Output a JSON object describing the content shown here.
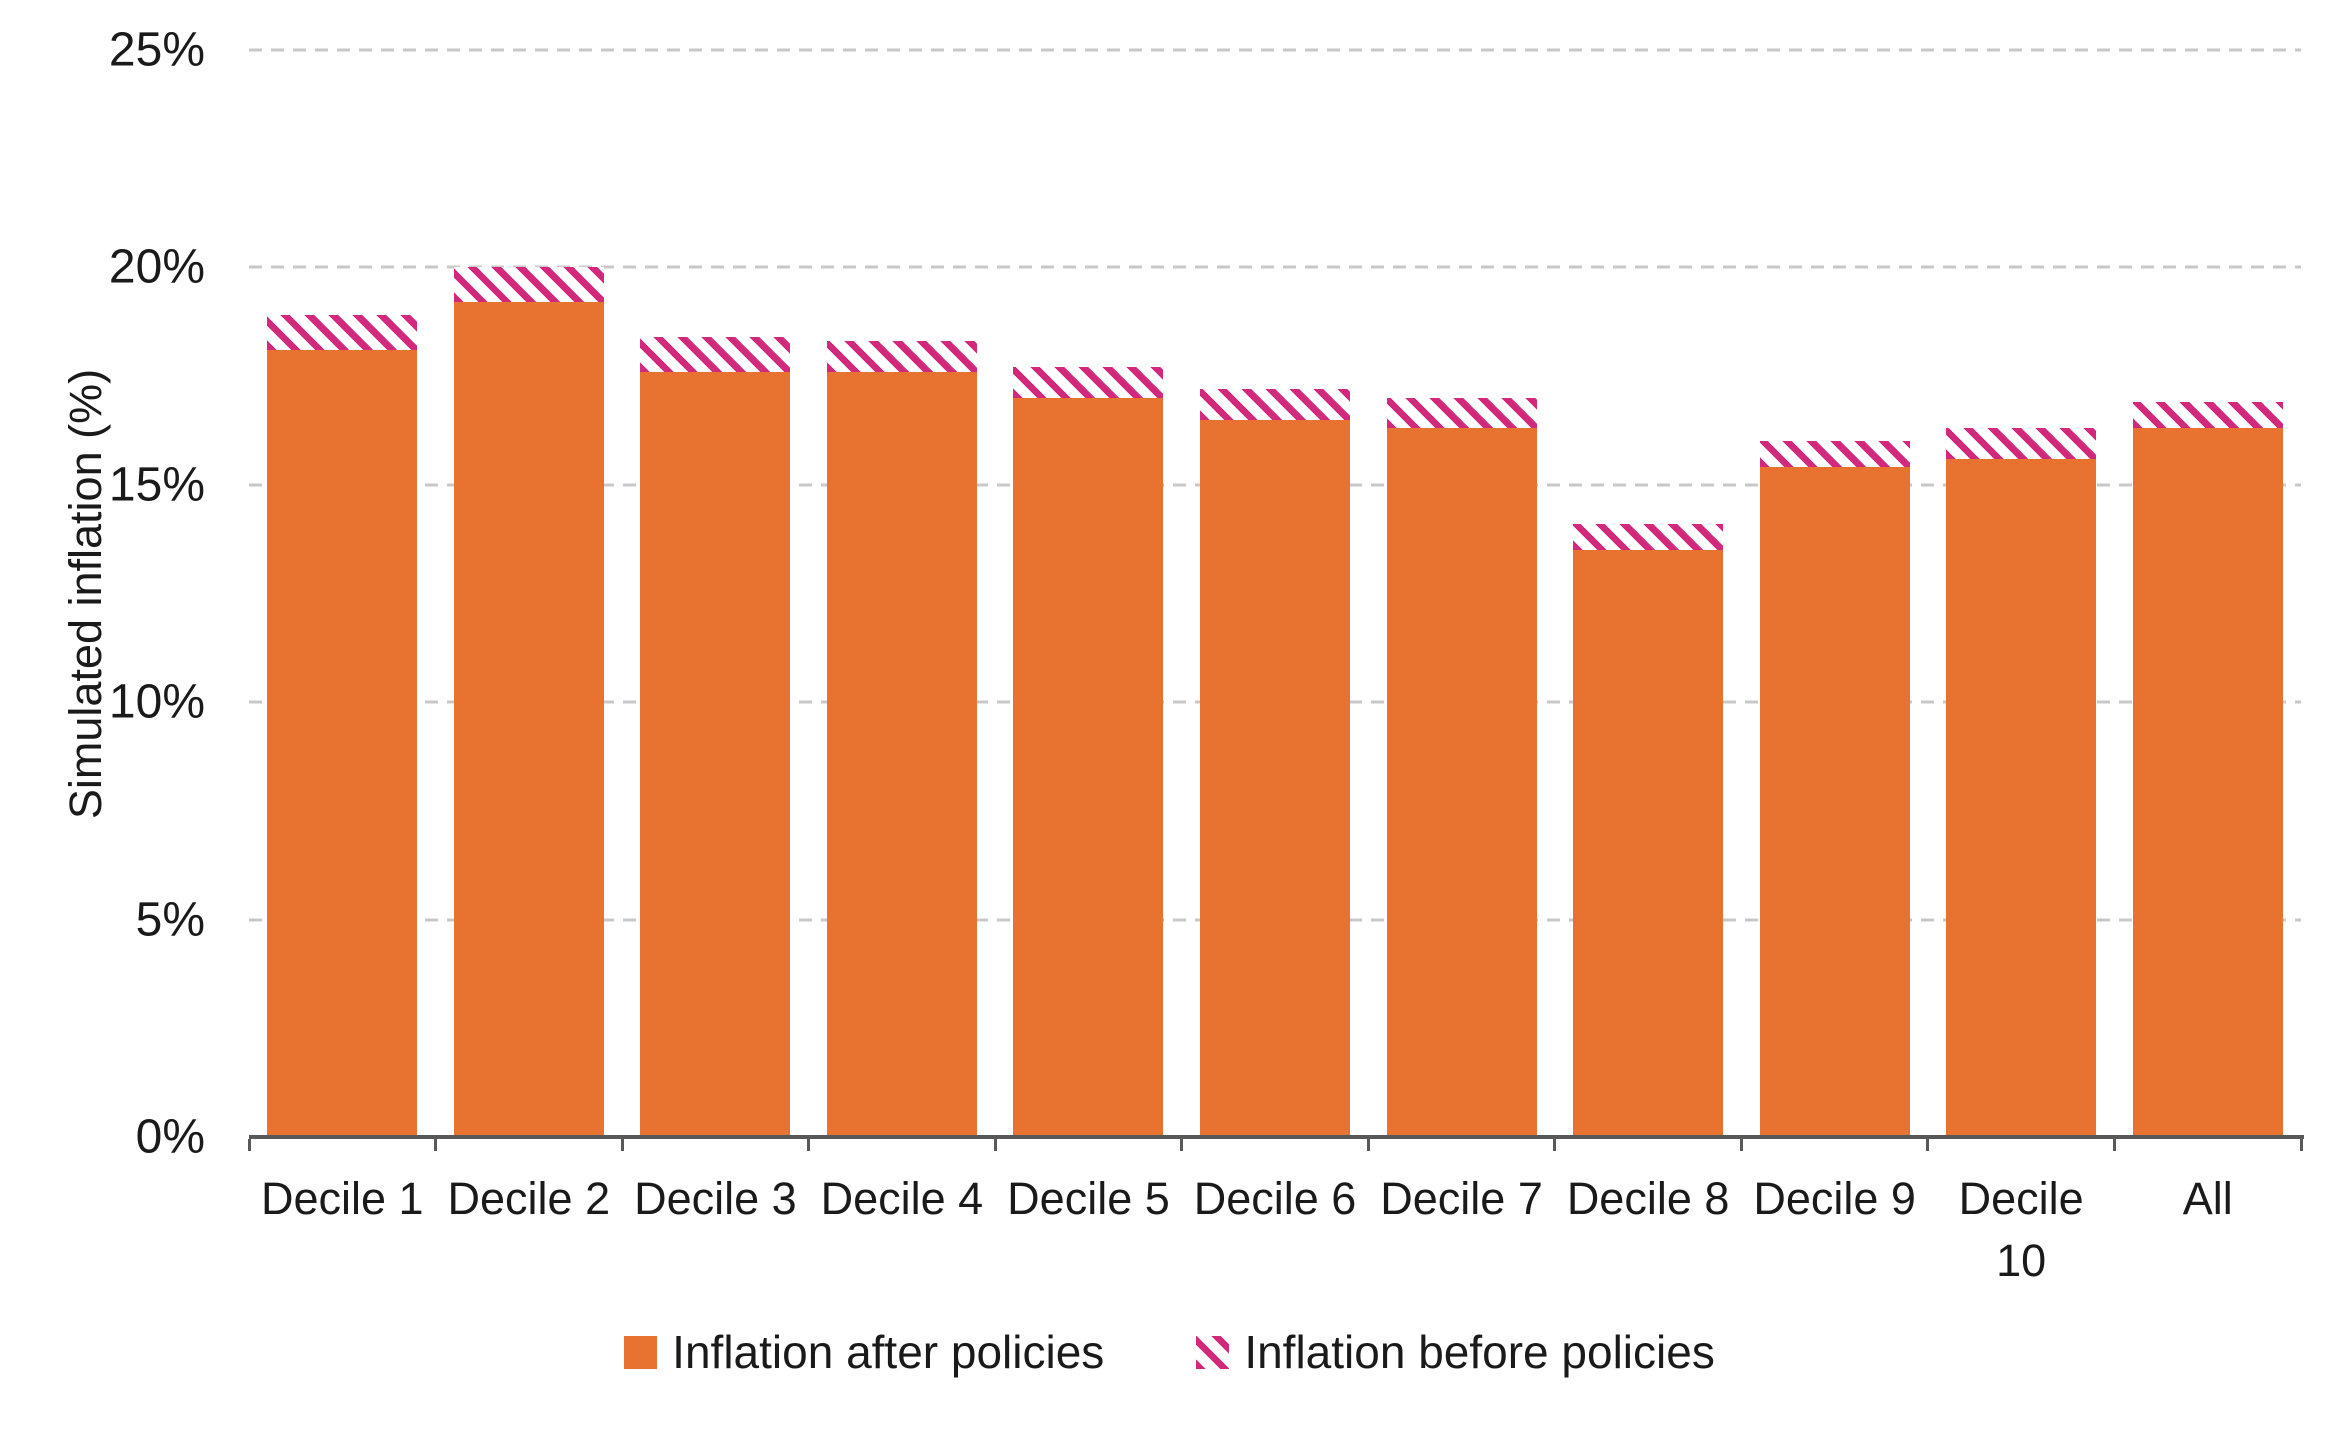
{
  "chart_data": {
    "type": "bar",
    "title": "",
    "xlabel": "",
    "ylabel": "Simulated inflation (%)",
    "categories": [
      "Decile 1",
      "Decile 2",
      "Decile 3",
      "Decile 4",
      "Decile 5",
      "Decile 6",
      "Decile 7",
      "Decile 8",
      "Decile 9",
      "Decile 10",
      "All"
    ],
    "series": [
      {
        "name": "Inflation after policies",
        "values": [
          18.1,
          19.2,
          17.6,
          17.6,
          17.0,
          16.5,
          16.3,
          13.5,
          15.4,
          15.6,
          16.3
        ]
      },
      {
        "name": "Inflation before policies",
        "values": [
          18.9,
          20.0,
          18.4,
          18.3,
          17.7,
          17.2,
          17.0,
          14.1,
          16.0,
          16.3,
          16.9
        ]
      }
    ],
    "ylim": [
      0,
      25
    ],
    "y_tick_labels_top_down": [
      "25%",
      "20%",
      "15%",
      "10%",
      "5%",
      "0%"
    ],
    "grid": "horizontal-dashed",
    "legend_position": "bottom-center",
    "render_note": "after-policies value drawn as solid orange column; before-policies value drawn as pink-hatched cap from after-value up to before-value"
  },
  "colors": {
    "after_fill": "#e8722f",
    "before_hatch": "#d2297d",
    "hatch_background": "#ffffff",
    "gridline": "#c8c8c8",
    "axis": "#595959",
    "text": "#1a1a1a",
    "background": "#ffffff"
  }
}
